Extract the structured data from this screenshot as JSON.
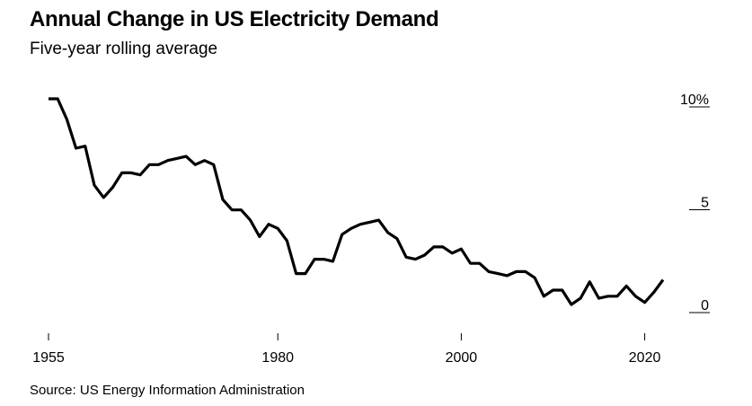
{
  "title": "Annual Change in US Electricity Demand",
  "subtitle": "Five-year rolling average",
  "source": "Source: US Energy Information Administration",
  "chart_data": {
    "type": "line",
    "title": "Annual Change in US Electricity Demand",
    "subtitle": "Five-year rolling average",
    "xlabel": "",
    "ylabel": "",
    "xlim": [
      1955,
      2022
    ],
    "ylim": [
      -1.2,
      10
    ],
    "x_ticks": [
      1955,
      1980,
      2000,
      2020
    ],
    "x_tick_labels": [
      "1955",
      "1980",
      "2000",
      "2020"
    ],
    "y_ticks": [
      10,
      5,
      0
    ],
    "y_tick_labels": [
      "10%",
      "5",
      "0"
    ],
    "grid": false,
    "line_color": "#000000",
    "series": [
      {
        "x": [
          1955,
          1956,
          1957,
          1958,
          1959,
          1960,
          1961,
          1962,
          1963,
          1964,
          1965,
          1966,
          1967,
          1968,
          1969,
          1970,
          1971,
          1972,
          1973,
          1974,
          1975,
          1976,
          1977,
          1978,
          1979,
          1980,
          1981,
          1982,
          1983,
          1984,
          1985,
          1986,
          1987,
          1988,
          1989,
          1990,
          1991,
          1992,
          1993,
          1994,
          1995,
          1996,
          1997,
          1998,
          1999,
          2000,
          2001,
          2002,
          2003,
          2004,
          2005,
          2006,
          2007,
          2008,
          2009,
          2010,
          2011,
          2012,
          2013,
          2014,
          2015,
          2016,
          2017,
          2018,
          2019,
          2020,
          2021,
          2022
        ],
        "y": [
          10.0,
          10.0,
          9.0,
          7.6,
          7.7,
          5.8,
          5.2,
          5.7,
          6.4,
          6.4,
          6.3,
          6.8,
          6.8,
          7.0,
          7.1,
          7.2,
          6.8,
          7.0,
          6.8,
          5.1,
          4.6,
          4.6,
          4.1,
          3.3,
          3.9,
          3.7,
          3.1,
          1.5,
          1.5,
          2.2,
          2.2,
          2.1,
          3.4,
          3.7,
          3.9,
          4.0,
          4.1,
          3.5,
          3.2,
          2.3,
          2.2,
          2.4,
          2.8,
          2.8,
          2.5,
          2.7,
          2.0,
          2.0,
          1.6,
          1.5,
          1.4,
          1.6,
          1.6,
          1.3,
          0.4,
          0.7,
          0.7,
          0.0,
          0.3,
          1.1,
          0.3,
          0.4,
          0.4,
          0.9,
          0.4,
          0.1,
          0.6,
          1.2
        ]
      }
    ]
  }
}
